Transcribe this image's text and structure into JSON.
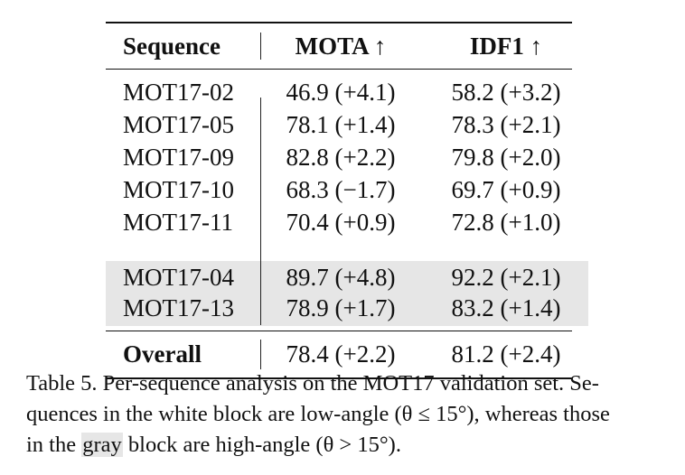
{
  "table": {
    "headers": {
      "sequence": "Sequence",
      "mota": "MOTA ↑",
      "idf1": "IDF1 ↑"
    },
    "rows": [
      {
        "sequence": "MOT17-02",
        "mota": "46.9 (+4.1)",
        "idf1": "58.2 (+3.2)",
        "block": "white"
      },
      {
        "sequence": "MOT17-05",
        "mota": "78.1 (+1.4)",
        "idf1": "78.3 (+2.1)",
        "block": "white"
      },
      {
        "sequence": "MOT17-09",
        "mota": "82.8 (+2.2)",
        "idf1": "79.8 (+2.0)",
        "block": "white"
      },
      {
        "sequence": "MOT17-10",
        "mota": "68.3 (−1.7)",
        "idf1": "69.7 (+0.9)",
        "block": "white"
      },
      {
        "sequence": "MOT17-11",
        "mota": "70.4 (+0.9)",
        "idf1": "72.8 (+1.0)",
        "block": "white"
      },
      {
        "sequence": "MOT17-04",
        "mota": "89.7 (+4.8)",
        "idf1": "92.2 (+2.1)",
        "block": "gray"
      },
      {
        "sequence": "MOT17-13",
        "mota": "78.9 (+1.7)",
        "idf1": "83.2 (+1.4)",
        "block": "gray"
      }
    ],
    "overall": {
      "sequence": "Overall",
      "mota": "78.4 (+2.2)",
      "idf1": "81.2 (+2.4)"
    },
    "gray_color": "#e6e6e6"
  },
  "caption": {
    "line1": "Table 5. Per-sequence analysis on the MOT17 validation set. Se-",
    "line2": "quences in the white block are low-angle (θ ≤ 15°), whereas those",
    "line3_pre": "in the ",
    "line3_gray": "gray",
    "line3_post": " block are high-angle (θ > 15°)."
  }
}
